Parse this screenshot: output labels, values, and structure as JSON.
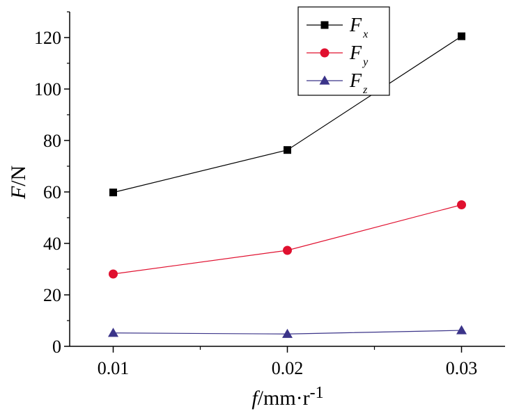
{
  "chart_data": {
    "type": "line",
    "x": [
      0.01,
      0.02,
      0.03
    ],
    "x_ticks": [
      "0.01",
      "0.02",
      "0.03"
    ],
    "xlim": [
      0.0075,
      0.0325
    ],
    "ylim": [
      0,
      130
    ],
    "y_ticks": [
      "0",
      "20",
      "40",
      "60",
      "80",
      "100",
      "120"
    ],
    "xlabel": {
      "var": "f",
      "unit": "/mm·r",
      "sup": "-1"
    },
    "ylabel": {
      "var": "F",
      "unit": "/N"
    },
    "legend_position": "top-right",
    "grid": false,
    "series": [
      {
        "name": "F",
        "sub": "x",
        "marker": "square",
        "color": "#000000",
        "values": [
          59.8,
          76.3,
          120.5
        ]
      },
      {
        "name": "F",
        "sub": "y",
        "marker": "circle",
        "color": "#e0102f",
        "values": [
          28.1,
          37.3,
          55.0
        ]
      },
      {
        "name": "F",
        "sub": "z",
        "marker": "triangle",
        "color": "#3b3489",
        "values": [
          5.2,
          4.8,
          6.2
        ]
      }
    ]
  }
}
